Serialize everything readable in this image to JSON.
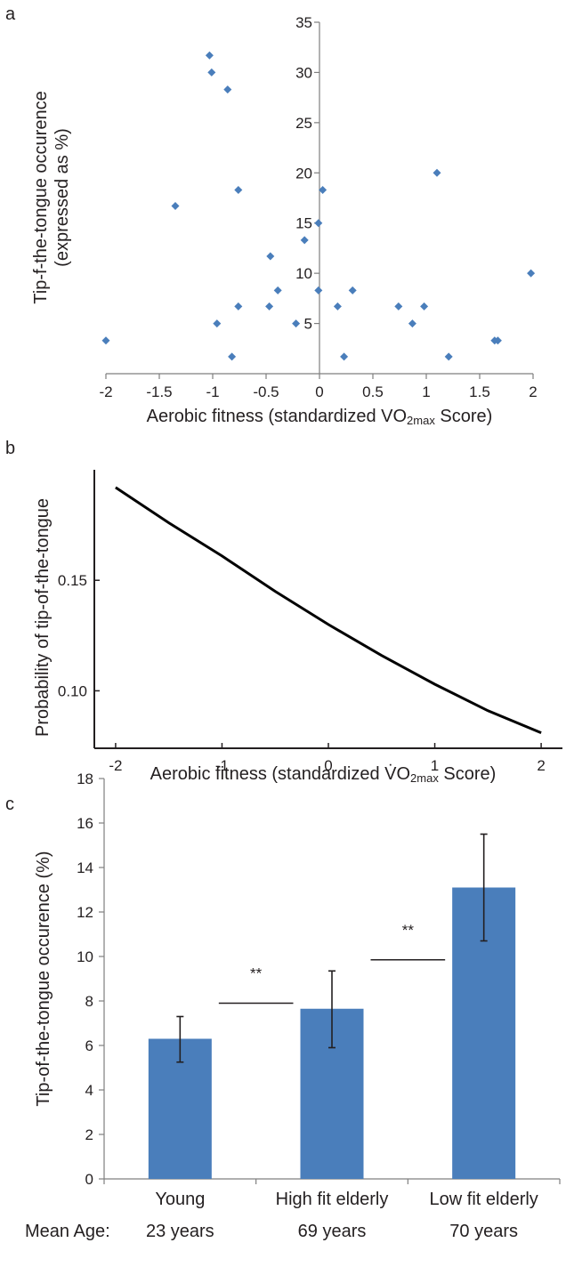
{
  "chart_data": [
    {
      "panel": "a",
      "type": "scatter",
      "xlabel_main": "Aerobic fitness (standardized VO",
      "xlabel_sub": "2max",
      "xlabel_end": " Score)",
      "ylabel_line1": "Tip-f-the-tongue occurence",
      "ylabel_line2": "(expressed as %)",
      "xlim": [
        -2,
        2
      ],
      "ylim": [
        0,
        35
      ],
      "xticks": [
        "-2",
        "-1.5",
        "-1",
        "-0.5",
        "0",
        "0.5",
        "1",
        "1.5",
        "2"
      ],
      "yticks": [
        "5",
        "10",
        "15",
        "20",
        "25",
        "30",
        "35"
      ],
      "marker_color": "#4a7ebb",
      "points": [
        {
          "x": -2.0,
          "y": 3.3
        },
        {
          "x": -1.35,
          "y": 16.7
        },
        {
          "x": -1.03,
          "y": 31.7
        },
        {
          "x": -1.01,
          "y": 30.0
        },
        {
          "x": -0.96,
          "y": 5.0
        },
        {
          "x": -0.86,
          "y": 28.3
        },
        {
          "x": -0.82,
          "y": 1.7
        },
        {
          "x": -0.76,
          "y": 18.3
        },
        {
          "x": -0.76,
          "y": 6.7
        },
        {
          "x": -0.46,
          "y": 11.7
        },
        {
          "x": -0.47,
          "y": 6.7
        },
        {
          "x": -0.39,
          "y": 8.3
        },
        {
          "x": -0.22,
          "y": 5.0
        },
        {
          "x": -0.14,
          "y": 13.3
        },
        {
          "x": -0.01,
          "y": 15.0
        },
        {
          "x": -0.01,
          "y": 8.3
        },
        {
          "x": 0.03,
          "y": 18.3
        },
        {
          "x": 0.17,
          "y": 6.7
        },
        {
          "x": 0.23,
          "y": 1.7
        },
        {
          "x": 0.31,
          "y": 8.3
        },
        {
          "x": 0.74,
          "y": 6.7
        },
        {
          "x": 0.87,
          "y": 5.0
        },
        {
          "x": 0.98,
          "y": 6.7
        },
        {
          "x": 1.1,
          "y": 20.0
        },
        {
          "x": 1.21,
          "y": 1.7
        },
        {
          "x": 1.64,
          "y": 3.3
        },
        {
          "x": 1.67,
          "y": 3.3
        },
        {
          "x": 1.98,
          "y": 10.0
        }
      ]
    },
    {
      "panel": "b",
      "type": "line",
      "xlabel_main": "Aerobic fitness (standardized V̇O",
      "xlabel_sub": "2max",
      "xlabel_end": " Score)",
      "ylabel": "Probability of tip-of-the-tongue",
      "xlim": [
        -2.2,
        2.2
      ],
      "ylim": [
        0.074,
        0.2
      ],
      "xticks": [
        "-2",
        "-1",
        "0",
        "1",
        "2"
      ],
      "yticks": [
        "0.10",
        "0.15"
      ],
      "series": [
        {
          "x": [
            -2,
            -1.5,
            -1,
            -0.5,
            0,
            0.5,
            1,
            1.5,
            2
          ],
          "y": [
            0.192,
            0.176,
            0.161,
            0.145,
            0.13,
            0.116,
            0.103,
            0.091,
            0.081
          ]
        }
      ]
    },
    {
      "panel": "c",
      "type": "bar",
      "ylabel": "Tip-of-the-tongue occurence (%)",
      "ylim": [
        0,
        18
      ],
      "yticks": [
        "0",
        "2",
        "4",
        "6",
        "8",
        "10",
        "12",
        "14",
        "16",
        "18"
      ],
      "categories": [
        "Young",
        "High fit elderly",
        "Low fit elderly"
      ],
      "mean_age_label": "Mean Age:",
      "mean_ages": [
        "23 years",
        "69 years",
        "70 years"
      ],
      "values": [
        6.3,
        7.65,
        13.1
      ],
      "error_low": [
        5.25,
        5.9,
        10.7
      ],
      "error_high": [
        7.3,
        9.35,
        15.5
      ],
      "bar_color": "#4a7ebb",
      "significance": [
        {
          "between": [
            "Young",
            "High fit elderly"
          ],
          "label": "**",
          "y": 7.9
        },
        {
          "between": [
            "High fit elderly",
            "Low fit elderly"
          ],
          "label": "**",
          "y": 9.85
        }
      ]
    }
  ]
}
